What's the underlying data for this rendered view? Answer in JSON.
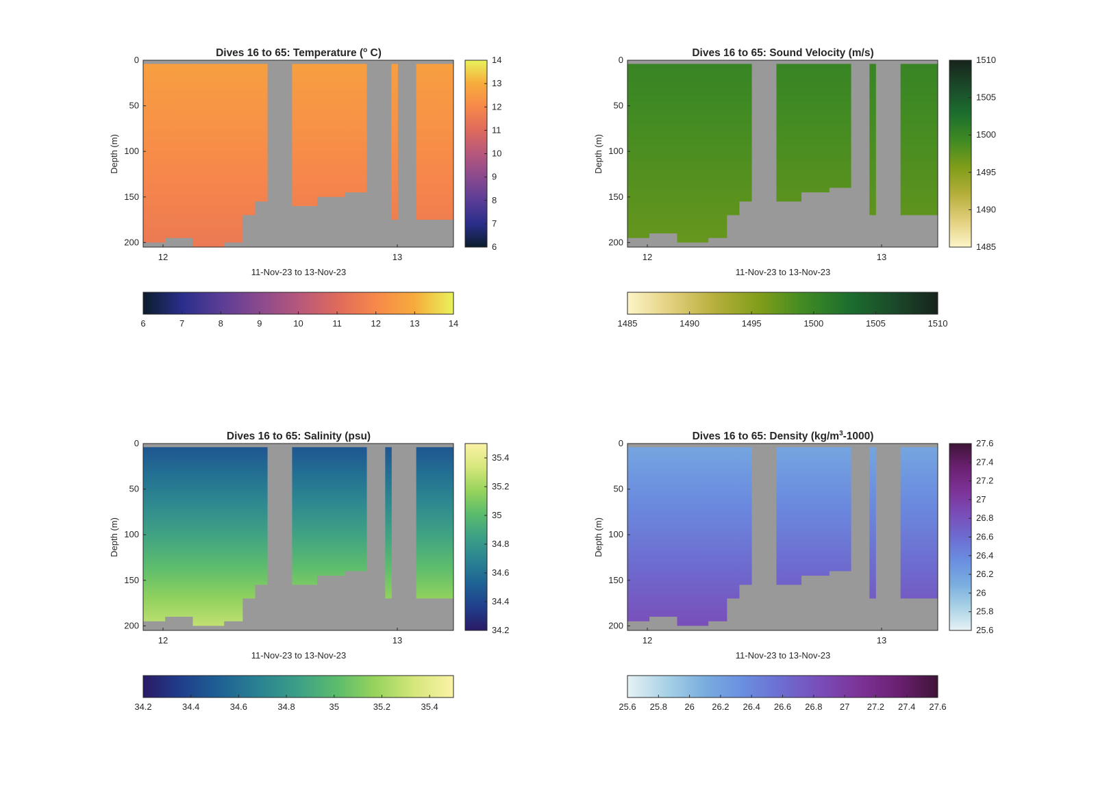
{
  "figure": {
    "colors": {
      "background": "#ffffff",
      "nodata": "#999999",
      "axis": "#262626"
    }
  },
  "chart_data": [
    {
      "type": "heatmap",
      "title_pre": "Dives 16 to 65: Temperature (",
      "title_sup": "o",
      "title_post": " C)",
      "ylabel": "Depth (m)",
      "xlabel": "11-Nov-23 to 13-Nov-23",
      "xticks": [
        "12",
        "13"
      ],
      "yticks": [
        "0",
        "50",
        "100",
        "150",
        "200"
      ],
      "ylim": [
        0,
        205
      ],
      "y_reversed": true,
      "colorbar_range": [
        6,
        14
      ],
      "colorbar_ticks": [
        "6",
        "7",
        "8",
        "9",
        "10",
        "11",
        "12",
        "13",
        "14"
      ],
      "colormap": [
        "#0b1d2c",
        "#2a2e8a",
        "#5a3d96",
        "#8a4a8e",
        "#b6577c",
        "#de6a5c",
        "#f7884a",
        "#f7ab3c",
        "#e8f25a"
      ],
      "values_summary": {
        "surface_value": 12.7,
        "deep_value": 11.5,
        "column_max_depth_m": [
          200,
          195,
          205,
          200,
          170,
          155,
          0,
          160,
          150,
          145,
          0,
          0,
          175,
          0,
          0,
          175,
          175
        ]
      }
    },
    {
      "type": "heatmap",
      "title_pre": "Dives 16 to 65: Sound Velocity (m/s)",
      "title_sup": "",
      "title_post": "",
      "ylabel": "Depth (m)",
      "xlabel": "11-Nov-23 to 13-Nov-23",
      "xticks": [
        "12",
        "13"
      ],
      "yticks": [
        "0",
        "50",
        "100",
        "150",
        "200"
      ],
      "ylim": [
        0,
        205
      ],
      "y_reversed": true,
      "colorbar_range": [
        1485,
        1510
      ],
      "colorbar_ticks": [
        "1485",
        "1490",
        "1495",
        "1500",
        "1505",
        "1510"
      ],
      "colormap": [
        "#fcf4c8",
        "#e2cf7c",
        "#b4ae3a",
        "#7f9d19",
        "#3f8a23",
        "#1c6e2e",
        "#1b4a2a",
        "#17231c"
      ],
      "values_summary": {
        "surface_value": 1500,
        "deep_value": 1497,
        "column_max_depth_m": [
          195,
          190,
          200,
          195,
          170,
          155,
          0,
          155,
          145,
          140,
          0,
          170,
          0,
          170,
          170
        ]
      }
    },
    {
      "type": "heatmap",
      "title_pre": "Dives 16 to 65: Salinity (psu)",
      "title_sup": "",
      "title_post": "",
      "ylabel": "Depth (m)",
      "xlabel": "11-Nov-23 to 13-Nov-23",
      "xticks": [
        "12",
        "13"
      ],
      "yticks": [
        "0",
        "50",
        "100",
        "150",
        "200"
      ],
      "ylim": [
        0,
        205
      ],
      "y_reversed": true,
      "colorbar_range": [
        34.2,
        35.5
      ],
      "colorbar_ticks": [
        "34.2",
        "34.4",
        "34.6",
        "34.8",
        "35",
        "35.2",
        "35.4"
      ],
      "colormap": [
        "#2a1a66",
        "#203f8c",
        "#1e6294",
        "#2a8392",
        "#3ca086",
        "#5cbc6c",
        "#98d45c",
        "#d6e77c",
        "#fbf2a6"
      ],
      "values_summary": {
        "surface_value": 34.45,
        "deep_value": 35.3,
        "column_max_depth_m": [
          195,
          190,
          200,
          195,
          170,
          155,
          0,
          155,
          145,
          140,
          0,
          170,
          0,
          170,
          170
        ]
      }
    },
    {
      "type": "heatmap",
      "title_pre": "Dives 16 to 65: Density (kg/m",
      "title_sup": "3",
      "title_post": "-1000)",
      "ylabel": "Depth (m)",
      "xlabel": "11-Nov-23 to 13-Nov-23",
      "xticks": [
        "12",
        "13"
      ],
      "yticks": [
        "0",
        "50",
        "100",
        "150",
        "200"
      ],
      "ylim": [
        0,
        205
      ],
      "y_reversed": true,
      "colorbar_range": [
        25.6,
        27.6
      ],
      "colorbar_ticks": [
        "25.6",
        "25.8",
        "26",
        "26.2",
        "26.4",
        "26.6",
        "26.8",
        "27",
        "27.2",
        "27.4",
        "27.6"
      ],
      "colormap": [
        "#e6f1f4",
        "#a9d2e6",
        "#79addf",
        "#6a8ee0",
        "#6d6cd0",
        "#7a4cb8",
        "#7c3296",
        "#6a2070",
        "#3e1437"
      ],
      "values_summary": {
        "surface_value": 26.15,
        "deep_value": 26.85,
        "column_max_depth_m": [
          195,
          190,
          200,
          195,
          170,
          155,
          0,
          155,
          145,
          140,
          0,
          170,
          0,
          170,
          170
        ]
      }
    }
  ]
}
